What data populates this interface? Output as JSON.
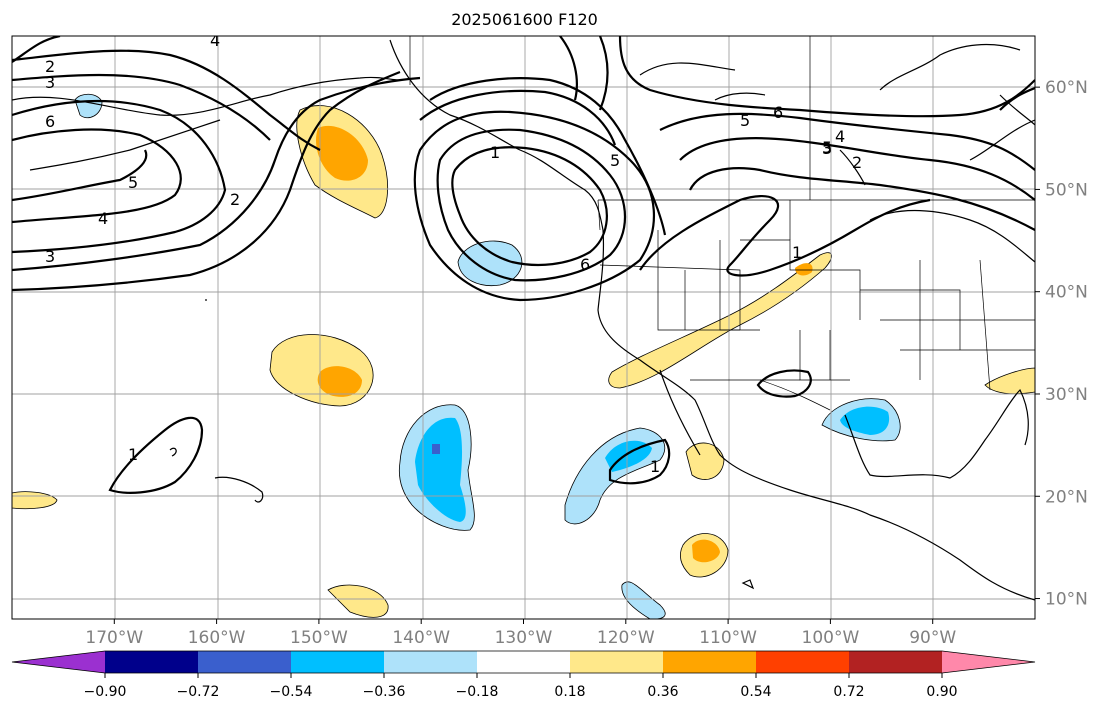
{
  "title": "2025061600 F120",
  "map": {
    "extent": {
      "lon_min": -180,
      "lon_max": -80,
      "lat_min": 8,
      "lat_max": 65
    },
    "lon_ticks": [
      {
        "lon": -170,
        "label": "170°W"
      },
      {
        "lon": -160,
        "label": "160°W"
      },
      {
        "lon": -150,
        "label": "150°W"
      },
      {
        "lon": -140,
        "label": "140°W"
      },
      {
        "lon": -130,
        "label": "130°W"
      },
      {
        "lon": -120,
        "label": "120°W"
      },
      {
        "lon": -110,
        "label": "110°W"
      },
      {
        "lon": -100,
        "label": "100°W"
      },
      {
        "lon": -90,
        "label": "90°W"
      }
    ],
    "lat_ticks": [
      {
        "lat": 10,
        "label": "10°N"
      },
      {
        "lat": 20,
        "label": "20°N"
      },
      {
        "lat": 30,
        "label": "30°N"
      },
      {
        "lat": 40,
        "label": "40°N"
      },
      {
        "lat": 50,
        "label": "50°N"
      },
      {
        "lat": 60,
        "label": "60°N"
      }
    ],
    "contour_labels": [
      "4",
      "2",
      "3",
      "6",
      "5",
      "4",
      "3",
      "2",
      "5",
      "6",
      "5",
      "6",
      "5",
      "4",
      "3",
      "2",
      "1",
      "1",
      "1",
      "1"
    ]
  },
  "colorbar": {
    "colors": [
      "#9b30d0",
      "#00008b",
      "#3a5fcd",
      "#00bfff",
      "#aee2fa",
      "#ffffff",
      "#ffe88a",
      "#ffa500",
      "#ff4000",
      "#b22222",
      "#ff88aa"
    ],
    "tick_labels": [
      "−0.90",
      "−0.72",
      "−0.54",
      "−0.36",
      "−0.18",
      "0.18",
      "0.36",
      "0.54",
      "0.72",
      "0.90"
    ]
  }
}
